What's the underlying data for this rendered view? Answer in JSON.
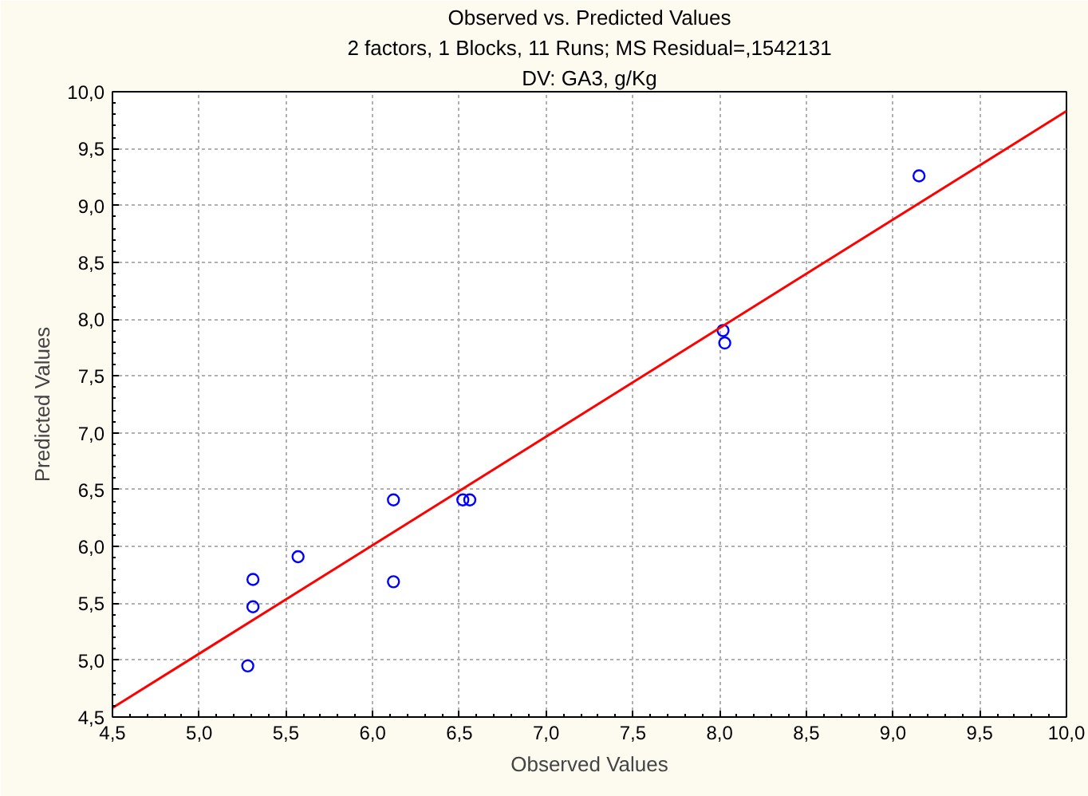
{
  "chart_data": {
    "type": "scatter",
    "title": "Observed vs. Predicted Values",
    "subtitle": "2 factors, 1 Blocks, 11 Runs; MS Residual=,1542131",
    "annotations": [
      "DV: GA3, g/Kg"
    ],
    "xlabel": "Observed Values",
    "ylabel": "Predicted Values",
    "x": [
      5.28,
      5.31,
      5.31,
      5.57,
      6.12,
      6.12,
      6.52,
      6.56,
      8.02,
      8.03,
      9.15
    ],
    "series": [
      {
        "color": "#0000ff",
        "marker": "circle",
        "values": [
          4.95,
          5.47,
          5.71,
          5.91,
          6.41,
          5.69,
          6.41,
          6.41,
          7.9,
          7.79,
          9.26
        ]
      },
      {
        "type": "line",
        "color": "#ff0000",
        "x": [
          4.5,
          10.0
        ],
        "values": [
          4.58,
          9.83
        ]
      }
    ],
    "xlim": [
      4.5,
      10.0
    ],
    "ylim": [
      4.5,
      10.0
    ],
    "xticks": [
      {
        "value": 4.5,
        "label": "4,5"
      },
      {
        "value": 5.0,
        "label": "5,0"
      },
      {
        "value": 5.5,
        "label": "5,5"
      },
      {
        "value": 6.0,
        "label": "6,0"
      },
      {
        "value": 6.5,
        "label": "6,5"
      },
      {
        "value": 7.0,
        "label": "7,0"
      },
      {
        "value": 7.5,
        "label": "7,5"
      },
      {
        "value": 8.0,
        "label": "8,0"
      },
      {
        "value": 8.5,
        "label": "8,5"
      },
      {
        "value": 9.0,
        "label": "9,0"
      },
      {
        "value": 9.5,
        "label": "9,5"
      },
      {
        "value": 10.0,
        "label": "10,0"
      }
    ],
    "yticks": [
      {
        "value": 4.5,
        "label": "4,5"
      },
      {
        "value": 5.0,
        "label": "5,0"
      },
      {
        "value": 5.5,
        "label": "5,5"
      },
      {
        "value": 6.0,
        "label": "6,0"
      },
      {
        "value": 6.5,
        "label": "6,5"
      },
      {
        "value": 7.0,
        "label": "7,0"
      },
      {
        "value": 7.5,
        "label": "7,5"
      },
      {
        "value": 8.0,
        "label": "8,0"
      },
      {
        "value": 8.5,
        "label": "8,5"
      },
      {
        "value": 9.0,
        "label": "9,0"
      },
      {
        "value": 9.5,
        "label": "9,5"
      },
      {
        "value": 10.0,
        "label": "10,0"
      }
    ],
    "grid": true
  }
}
